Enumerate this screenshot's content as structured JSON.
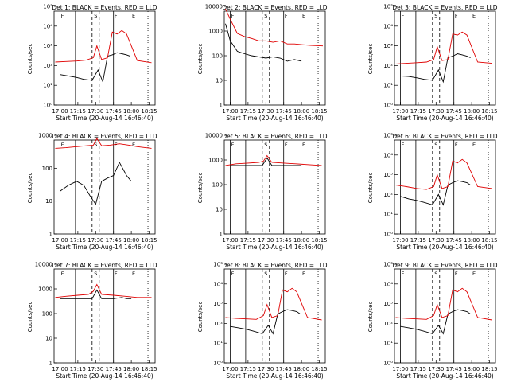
{
  "figure": {
    "times": [
      "17:00",
      "17:15",
      "17:30",
      "17:45",
      "18:00",
      "18:15"
    ],
    "start_time_label": "Start Time (20-Aug-14 16:46:40)",
    "ylabel": "Counts/sec",
    "marker_letters": {
      "S": "S",
      "F": "F",
      "E": "E",
      "A": "A"
    },
    "colors": {
      "events": "#000000",
      "lld": "#e00000"
    }
  },
  "chart_data": [
    {
      "type": "line",
      "title": "Det 1: BLACK = Events, RED = LLD",
      "xlabel": "Start Time (20-Aug-14 16:46:40)",
      "ylabel": "Counts/sec",
      "x_ticks": [
        "17:00",
        "17:15",
        "17:30",
        "17:45",
        "18:00",
        "18:15"
      ],
      "ylim": [
        1,
        100000
      ],
      "yscale": "log",
      "y_ticks": [
        "10⁰",
        "10¹",
        "10²",
        "10³",
        "10⁴",
        "10⁵"
      ],
      "series": [
        {
          "name": "Events",
          "color": "#000000",
          "x": [
            "17:00",
            "17:07",
            "17:14",
            "17:20",
            "17:27",
            "17:32",
            "17:36",
            "17:40",
            "17:44",
            "17:48",
            "17:52",
            "17:56",
            "17:59"
          ],
          "y": [
            35,
            30,
            25,
            20,
            18,
            60,
            15,
            300,
            350,
            450,
            400,
            350,
            300
          ]
        },
        {
          "name": "LLD",
          "color": "#e00000",
          "x": [
            "16:56",
            "17:05",
            "17:14",
            "17:22",
            "17:28",
            "17:31",
            "17:35",
            "17:40",
            "17:44",
            "17:48",
            "17:52",
            "17:56",
            "18:05",
            "18:17"
          ],
          "y": [
            150,
            160,
            170,
            190,
            250,
            1000,
            200,
            250,
            5000,
            4000,
            6000,
            4000,
            180,
            140
          ]
        }
      ]
    },
    {
      "type": "line",
      "title": "Det 2: BLACK = Events, RED = LLD",
      "xlabel": "Start Time (20-Aug-14 16:46:40)",
      "ylabel": "Counts/sec",
      "x_ticks": [
        "17:00",
        "17:15",
        "17:30",
        "17:45",
        "18:00",
        "18:15"
      ],
      "ylim": [
        1,
        10000
      ],
      "yscale": "log",
      "y_ticks": [
        "1",
        "10",
        "100",
        "1000",
        "10000"
      ],
      "series": [
        {
          "name": "Events",
          "color": "#000000",
          "x": [
            "16:56",
            "17:00",
            "17:06",
            "17:12",
            "17:18",
            "17:24",
            "17:30",
            "17:36",
            "17:42",
            "17:48",
            "17:54",
            "18:00"
          ],
          "y": [
            2000,
            400,
            150,
            120,
            100,
            90,
            80,
            90,
            80,
            60,
            70,
            60
          ]
        },
        {
          "name": "LLD",
          "color": "#e00000",
          "x": [
            "16:56",
            "17:00",
            "17:06",
            "17:12",
            "17:18",
            "17:24",
            "17:30",
            "17:36",
            "17:42",
            "17:48",
            "17:54",
            "18:00",
            "18:08",
            "18:18"
          ],
          "y": [
            8000,
            3000,
            800,
            600,
            500,
            400,
            400,
            350,
            400,
            300,
            300,
            280,
            260,
            250
          ]
        }
      ]
    },
    {
      "type": "line",
      "title": "Det 3: BLACK = Events, RED = LLD",
      "xlabel": "Start Time (20-Aug-14 16:46:40)",
      "ylabel": "Counts/sec",
      "x_ticks": [
        "17:00",
        "17:15",
        "17:30",
        "17:45",
        "18:00",
        "18:15"
      ],
      "ylim": [
        1,
        100000
      ],
      "yscale": "log",
      "y_ticks": [
        "10⁰",
        "10¹",
        "10²",
        "10³",
        "10⁴",
        "10⁵"
      ],
      "series": [
        {
          "name": "Events",
          "color": "#000000",
          "x": [
            "17:00",
            "17:07",
            "17:14",
            "17:20",
            "17:27",
            "17:32",
            "17:36",
            "17:40",
            "17:44",
            "17:48",
            "17:52",
            "17:56",
            "17:59"
          ],
          "y": [
            30,
            28,
            24,
            20,
            18,
            60,
            15,
            250,
            300,
            400,
            350,
            300,
            250
          ]
        },
        {
          "name": "LLD",
          "color": "#e00000",
          "x": [
            "16:56",
            "17:05",
            "17:14",
            "17:22",
            "17:28",
            "17:31",
            "17:35",
            "17:40",
            "17:44",
            "17:48",
            "17:52",
            "17:56",
            "18:05",
            "18:17"
          ],
          "y": [
            120,
            130,
            140,
            150,
            200,
            900,
            180,
            200,
            4000,
            3500,
            5000,
            3500,
            150,
            130
          ]
        }
      ]
    },
    {
      "type": "line",
      "title": "Det 4: BLACK = Events, RED = LLD",
      "xlabel": "Start Time (20-Aug-14 16:46:40)",
      "ylabel": "Counts/sec",
      "x_ticks": [
        "17:00",
        "17:15",
        "17:30",
        "17:45",
        "18:00",
        "18:15"
      ],
      "ylim": [
        1,
        1000
      ],
      "yscale": "log",
      "y_ticks": [
        "1",
        "10",
        "100",
        "1000"
      ],
      "series": [
        {
          "name": "Events",
          "color": "#000000",
          "x": [
            "17:00",
            "17:07",
            "17:14",
            "17:20",
            "17:25",
            "17:30",
            "17:35",
            "17:40",
            "17:45",
            "17:50",
            "17:56",
            "18:00"
          ],
          "y": [
            20,
            30,
            40,
            30,
            15,
            8,
            40,
            50,
            60,
            150,
            60,
            40
          ]
        },
        {
          "name": "LLD",
          "color": "#e00000",
          "x": [
            "16:56",
            "17:05",
            "17:14",
            "17:22",
            "17:28",
            "17:31",
            "17:35",
            "17:42",
            "17:50",
            "17:58",
            "18:05",
            "18:17"
          ],
          "y": [
            400,
            420,
            450,
            480,
            500,
            800,
            480,
            500,
            550,
            500,
            450,
            400
          ]
        }
      ]
    },
    {
      "type": "line",
      "title": "Det 5: BLACK = Events, RED = LLD",
      "xlabel": "Start Time (20-Aug-14 16:46:40)",
      "ylabel": "Counts/sec",
      "x_ticks": [
        "17:00",
        "17:15",
        "17:30",
        "17:45",
        "18:00",
        "18:15"
      ],
      "ylim": [
        1,
        10000
      ],
      "yscale": "log",
      "y_ticks": [
        "1",
        "10",
        "100",
        "1000",
        "10000"
      ],
      "series": [
        {
          "name": "Events",
          "color": "#000000",
          "x": [
            "17:00",
            "17:10",
            "17:20",
            "17:27",
            "17:31",
            "17:35",
            "17:45",
            "17:55",
            "18:00"
          ],
          "y": [
            600,
            600,
            600,
            600,
            1200,
            600,
            600,
            600,
            600
          ]
        },
        {
          "name": "LLD",
          "color": "#e00000",
          "x": [
            "16:56",
            "17:05",
            "17:15",
            "17:24",
            "17:28",
            "17:31",
            "17:35",
            "17:45",
            "17:55",
            "18:05",
            "18:17"
          ],
          "y": [
            600,
            700,
            750,
            800,
            900,
            1500,
            800,
            750,
            700,
            650,
            600
          ]
        }
      ]
    },
    {
      "type": "line",
      "title": "Det 6: BLACK = Events, RED = LLD",
      "xlabel": "Start Time (20-Aug-14 16:46:40)",
      "ylabel": "Counts/sec",
      "x_ticks": [
        "17:00",
        "17:15",
        "17:30",
        "17:45",
        "18:00",
        "18:15"
      ],
      "ylim": [
        1,
        100000
      ],
      "yscale": "log",
      "y_ticks": [
        "10⁰",
        "10¹",
        "10²",
        "10³",
        "10⁴",
        "10⁵"
      ],
      "series": [
        {
          "name": "Events",
          "color": "#000000",
          "x": [
            "17:00",
            "17:07",
            "17:14",
            "17:20",
            "17:27",
            "17:32",
            "17:36",
            "17:40",
            "17:44",
            "17:48",
            "17:52",
            "17:56",
            "17:59"
          ],
          "y": [
            80,
            60,
            50,
            40,
            30,
            100,
            30,
            300,
            400,
            500,
            450,
            400,
            300
          ]
        },
        {
          "name": "LLD",
          "color": "#e00000",
          "x": [
            "16:56",
            "17:05",
            "17:14",
            "17:22",
            "17:28",
            "17:31",
            "17:35",
            "17:40",
            "17:44",
            "17:48",
            "17:52",
            "17:56",
            "18:05",
            "18:17"
          ],
          "y": [
            300,
            250,
            200,
            180,
            250,
            1000,
            200,
            250,
            5000,
            4000,
            6000,
            4000,
            250,
            200
          ]
        }
      ]
    },
    {
      "type": "line",
      "title": "Det 7: BLACK = Events, RED = LLD",
      "xlabel": "Start Time (20-Aug-14 16:46:40)",
      "ylabel": "Counts/sec",
      "x_ticks": [
        "17:00",
        "17:15",
        "17:30",
        "17:45",
        "18:00",
        "18:15"
      ],
      "ylim": [
        1,
        10000
      ],
      "yscale": "log",
      "y_ticks": [
        "1",
        "10",
        "100",
        "1000",
        "10000"
      ],
      "series": [
        {
          "name": "Events",
          "color": "#000000",
          "x": [
            "17:00",
            "17:10",
            "17:20",
            "17:27",
            "17:31",
            "17:35",
            "17:45",
            "17:52",
            "17:56",
            "18:00"
          ],
          "y": [
            400,
            400,
            400,
            400,
            900,
            400,
            400,
            450,
            400,
            400
          ]
        },
        {
          "name": "LLD",
          "color": "#e00000",
          "x": [
            "16:56",
            "17:05",
            "17:15",
            "17:24",
            "17:28",
            "17:31",
            "17:35",
            "17:45",
            "17:55",
            "18:05",
            "18:17"
          ],
          "y": [
            450,
            500,
            550,
            600,
            800,
            1500,
            600,
            550,
            500,
            450,
            450
          ]
        }
      ]
    },
    {
      "type": "line",
      "title": "Det 8: BLACK = Events, RED = LLD",
      "xlabel": "Start Time (20-Aug-14 16:46:40)",
      "ylabel": "Counts/sec",
      "x_ticks": [
        "17:00",
        "17:15",
        "17:30",
        "17:45",
        "18:00",
        "18:15"
      ],
      "ylim": [
        1,
        100000
      ],
      "yscale": "log",
      "y_ticks": [
        "10⁰",
        "10¹",
        "10²",
        "10³",
        "10⁴",
        "10⁵"
      ],
      "series": [
        {
          "name": "Events",
          "color": "#000000",
          "x": [
            "17:00",
            "17:07",
            "17:14",
            "17:20",
            "17:27",
            "17:32",
            "17:36",
            "17:40",
            "17:44",
            "17:48",
            "17:52",
            "17:56",
            "17:59"
          ],
          "y": [
            70,
            60,
            50,
            40,
            30,
            80,
            30,
            300,
            400,
            500,
            450,
            400,
            300
          ]
        },
        {
          "name": "LLD",
          "color": "#e00000",
          "x": [
            "16:56",
            "17:05",
            "17:14",
            "17:22",
            "17:28",
            "17:31",
            "17:35",
            "17:40",
            "17:44",
            "17:48",
            "17:52",
            "17:56",
            "18:05",
            "18:17"
          ],
          "y": [
            200,
            180,
            170,
            160,
            250,
            900,
            200,
            250,
            5000,
            4000,
            6000,
            4000,
            200,
            150
          ]
        }
      ]
    },
    {
      "type": "line",
      "title": "Det 9: BLACK = Events, RED = LLD",
      "xlabel": "Start Time (20-Aug-14 16:46:40)",
      "ylabel": "Counts/sec",
      "x_ticks": [
        "17:00",
        "17:15",
        "17:30",
        "17:45",
        "18:00",
        "18:15"
      ],
      "ylim": [
        1,
        100000
      ],
      "yscale": "log",
      "y_ticks": [
        "10⁰",
        "10¹",
        "10²",
        "10³",
        "10⁴",
        "10⁵"
      ],
      "series": [
        {
          "name": "Events",
          "color": "#000000",
          "x": [
            "17:00",
            "17:07",
            "17:14",
            "17:20",
            "17:27",
            "17:32",
            "17:36",
            "17:40",
            "17:44",
            "17:48",
            "17:52",
            "17:56",
            "17:59"
          ],
          "y": [
            70,
            60,
            50,
            40,
            30,
            80,
            30,
            300,
            400,
            500,
            450,
            400,
            300
          ]
        },
        {
          "name": "LLD",
          "color": "#e00000",
          "x": [
            "16:56",
            "17:05",
            "17:14",
            "17:22",
            "17:28",
            "17:31",
            "17:35",
            "17:40",
            "17:44",
            "17:48",
            "17:52",
            "17:56",
            "18:05",
            "18:17"
          ],
          "y": [
            200,
            180,
            170,
            160,
            250,
            900,
            200,
            250,
            5000,
            4000,
            6000,
            4000,
            200,
            150
          ]
        }
      ]
    }
  ]
}
